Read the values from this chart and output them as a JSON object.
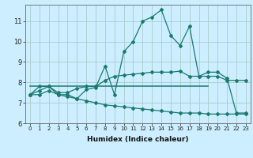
{
  "xlabel": "Humidex (Indice chaleur)",
  "background_color": "#cceeff",
  "line_color": "#1a7a6e",
  "grid_color": "#aacccc",
  "xlim": [
    -0.5,
    23.5
  ],
  "ylim": [
    6.0,
    11.8
  ],
  "yticks": [
    6,
    7,
    8,
    9,
    10,
    11
  ],
  "xticks": [
    0,
    1,
    2,
    3,
    4,
    5,
    6,
    7,
    8,
    9,
    10,
    11,
    12,
    13,
    14,
    15,
    16,
    17,
    18,
    19,
    20,
    21,
    22,
    23
  ],
  "series1_x": [
    0,
    1,
    2,
    3,
    4,
    5,
    6,
    7,
    8,
    9,
    10,
    11,
    12,
    13,
    14,
    15,
    16,
    17,
    18,
    19,
    20,
    21,
    22,
    23
  ],
  "series1_y": [
    7.4,
    7.8,
    7.8,
    7.4,
    7.4,
    7.2,
    7.65,
    7.75,
    8.8,
    7.4,
    9.5,
    10.0,
    11.0,
    11.2,
    11.55,
    10.3,
    9.8,
    10.75,
    8.3,
    8.5,
    8.5,
    8.2,
    6.5,
    6.5
  ],
  "series2_x": [
    0,
    1,
    2,
    3,
    4,
    5,
    6,
    7,
    8,
    9,
    10,
    11,
    12,
    13,
    14,
    15,
    16,
    17,
    18,
    19,
    20,
    21,
    22,
    23
  ],
  "series2_y": [
    7.4,
    7.6,
    7.8,
    7.5,
    7.5,
    7.7,
    7.8,
    7.8,
    8.1,
    8.3,
    8.35,
    8.4,
    8.45,
    8.5,
    8.5,
    8.5,
    8.55,
    8.3,
    8.3,
    8.3,
    8.3,
    8.1,
    8.1,
    8.1
  ],
  "series3_x": [
    0,
    19
  ],
  "series3_y": [
    7.8,
    7.8
  ],
  "series4_x": [
    0,
    1,
    2,
    3,
    4,
    5,
    6,
    7,
    8,
    9,
    10,
    11,
    12,
    13,
    14,
    15,
    16,
    17,
    18,
    19,
    20,
    21,
    22,
    23
  ],
  "series4_y": [
    7.4,
    7.4,
    7.6,
    7.4,
    7.3,
    7.2,
    7.1,
    7.0,
    6.9,
    6.85,
    6.8,
    6.75,
    6.7,
    6.65,
    6.6,
    6.55,
    6.5,
    6.5,
    6.5,
    6.45,
    6.45,
    6.45,
    6.45,
    6.45
  ]
}
